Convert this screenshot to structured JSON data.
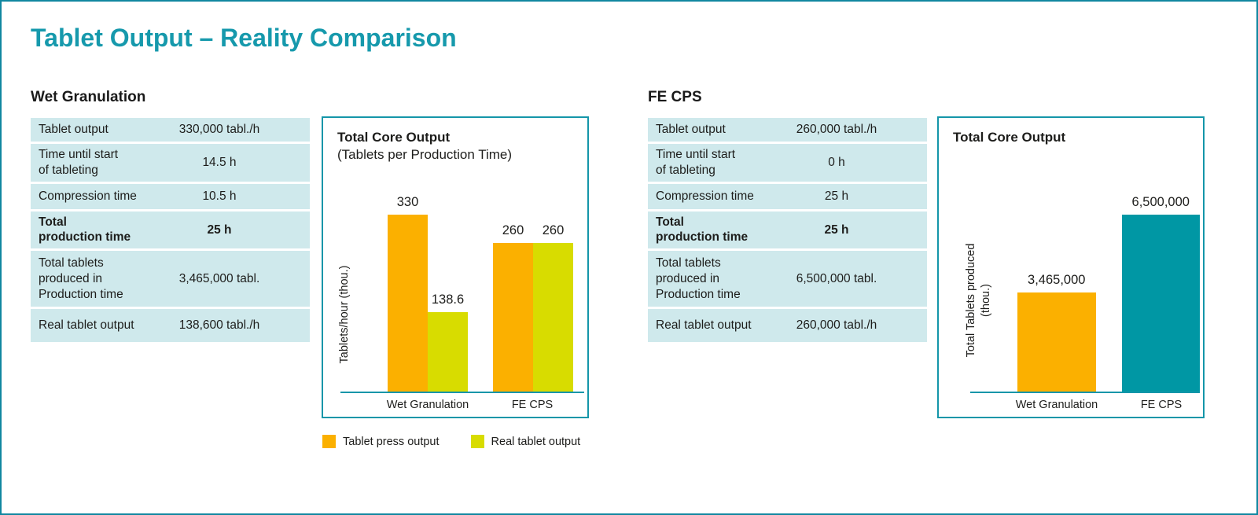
{
  "page": {
    "title": "Tablet Output – Reality Comparison"
  },
  "colors": {
    "accent_teal": "#1496a9",
    "title_teal": "#1699ac",
    "table_row_bg": "#cfe9ec",
    "orange": "#fbb000",
    "yellow_green": "#d8dc00",
    "teal_bar": "#0097a4"
  },
  "sections": [
    {
      "heading": "Wet Granulation",
      "rows": [
        {
          "label": "Tablet output",
          "value": "330,000 tabl./h"
        },
        {
          "label": "Time until start\nof tableting",
          "value": "14.5 h"
        },
        {
          "label": "Compression time",
          "value": "10.5 h"
        },
        {
          "label": "Total\nproduction time",
          "value": "25 h"
        },
        {
          "label": "Total tablets\nproduced in\nProduction time",
          "value": "3,465,000 tabl."
        },
        {
          "label": "Real tablet output",
          "value": "138,600 tabl./h"
        }
      ]
    },
    {
      "heading": "FE CPS",
      "rows": [
        {
          "label": "Tablet output",
          "value": "260,000 tabl./h"
        },
        {
          "label": "Time until start\nof tableting",
          "value": "0 h"
        },
        {
          "label": "Compression time",
          "value": "25 h"
        },
        {
          "label": "Total\nproduction time",
          "value": "25 h"
        },
        {
          "label": "Total tablets\nproduced in\nProduction time",
          "value": "6,500,000 tabl."
        },
        {
          "label": "Real tablet output",
          "value": "260,000 tabl./h"
        }
      ]
    }
  ],
  "chart_data": [
    {
      "type": "bar",
      "title": "Total Core Output",
      "subtitle": "(Tablets per Production Time)",
      "ylabel": "Tablets/hour (thou.)",
      "xlabel": "",
      "categories": [
        "Wet Granulation",
        "FE CPS"
      ],
      "series": [
        {
          "name": "Tablet press output",
          "color": "#fbb000",
          "values": [
            330,
            260
          ],
          "labels": [
            "330",
            "260"
          ]
        },
        {
          "name": "Real tablet output",
          "color": "#d8dc00",
          "values": [
            138.6,
            260
          ],
          "labels": [
            "138.6",
            "260"
          ]
        }
      ],
      "ylim": [
        0,
        344
      ],
      "grid": false,
      "legend_position": "below"
    },
    {
      "type": "bar",
      "title": "Total Core Output",
      "subtitle": "",
      "ylabel": "Total Tablets produced\n(thou.)",
      "xlabel": "",
      "categories": [
        "Wet Granulation",
        "FE CPS"
      ],
      "series": [
        {
          "name": "Total Core Output",
          "values": [
            3465,
            6500
          ],
          "labels": [
            "3,465,000",
            "6,500,000"
          ],
          "colors": [
            "#fbb000",
            "#0097a4"
          ]
        }
      ],
      "ylim": [
        0,
        6890
      ],
      "grid": false,
      "legend_position": "none"
    }
  ]
}
